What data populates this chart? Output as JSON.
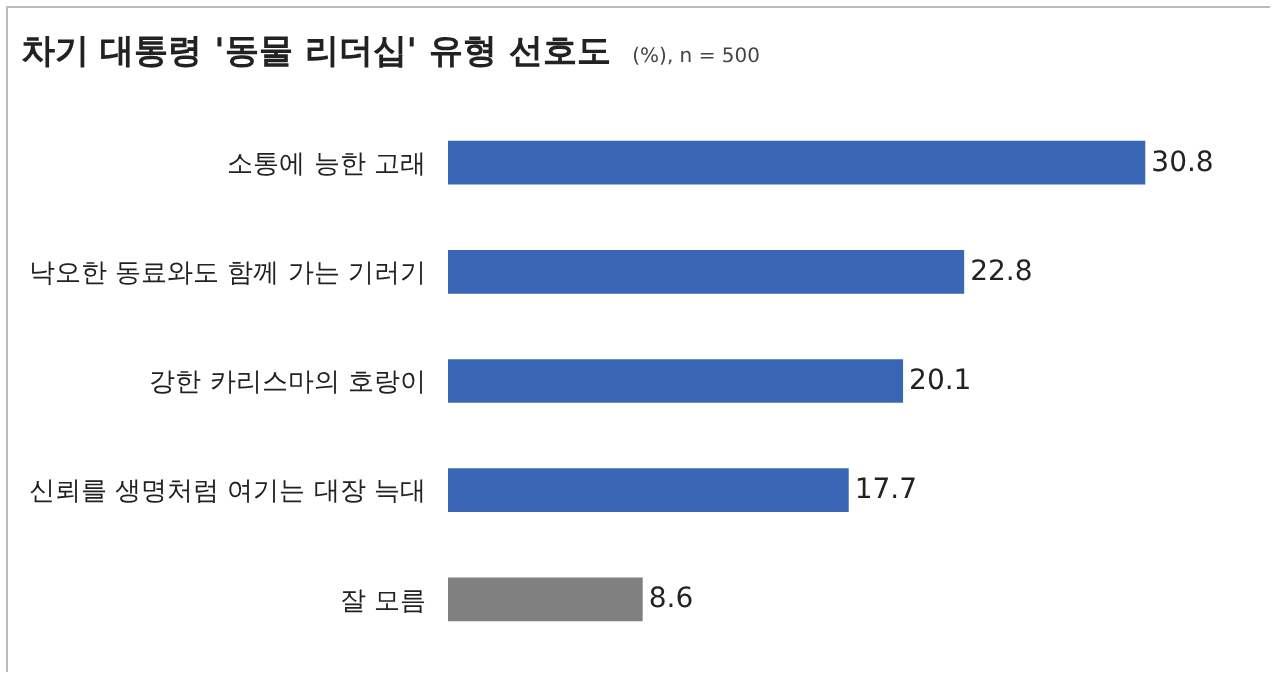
{
  "chart_data": {
    "type": "bar",
    "orientation": "horizontal",
    "title": "차기 대통령 '동물 리더십' 유형 선호도",
    "subtitle": "(%), n = 500",
    "categories": [
      "소통에 능한 고래",
      "낙오한 동료와도 함께 가는 기러기",
      "강한 카리스마의 호랑이",
      "신뢰를 생명처럼 여기는 대장 늑대",
      "잘 모름"
    ],
    "values": [
      30.8,
      22.8,
      20.1,
      17.7,
      8.6
    ],
    "colors": [
      "#3a67b5",
      "#3a67b5",
      "#3a67b5",
      "#3a67b5",
      "#808080"
    ],
    "data_labels": true,
    "grid": false,
    "legend": false,
    "tick_labels": "y"
  }
}
